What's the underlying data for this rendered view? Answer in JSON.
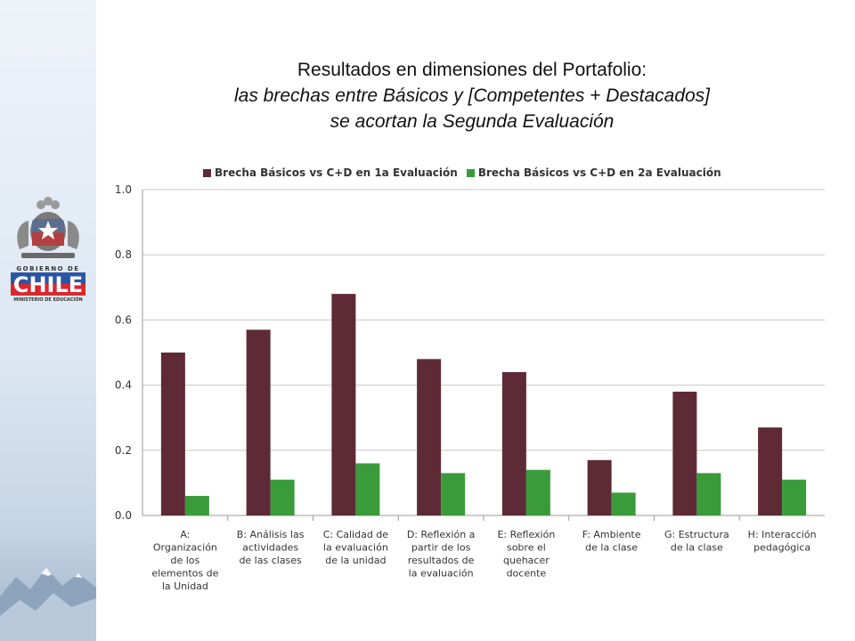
{
  "logo": {
    "line1": "GOBIERNO DE",
    "line2": "CHILE",
    "line3": "MINISTERIO DE EDUCACIÓN"
  },
  "title": {
    "line1": "Resultados en dimensiones del Portafolio:",
    "line2": "las brechas entre Básicos y [Competentes + Destacados]",
    "line3": "se acortan la Segunda Evaluación"
  },
  "chart_data": {
    "type": "bar",
    "categories": [
      [
        "A:",
        "Organización",
        "de los",
        "elementos de",
        "la Unidad"
      ],
      [
        "B: Análisis las",
        "actividades",
        "de las clases"
      ],
      [
        "C: Calidad de",
        "la evaluación",
        "de la unidad"
      ],
      [
        "D: Reflexión a",
        "partir de los",
        "resultados de",
        "la evaluación"
      ],
      [
        "E: Reflexión",
        "sobre el",
        "quehacer",
        "docente"
      ],
      [
        "F: Ambiente",
        "de la clase"
      ],
      [
        "G: Estructura",
        "de la clase"
      ],
      [
        "H: Interacción",
        "pedagógica"
      ]
    ],
    "series": [
      {
        "name": "Brecha Básicos vs C+D en 1a Evaluación",
        "color": "#5e2a36",
        "values": [
          0.5,
          0.57,
          0.68,
          0.48,
          0.44,
          0.17,
          0.38,
          0.27
        ]
      },
      {
        "name": "Brecha Básicos vs C+D en 2a Evaluación",
        "color": "#3a9b3a",
        "values": [
          0.06,
          0.11,
          0.16,
          0.13,
          0.14,
          0.07,
          0.13,
          0.11
        ]
      }
    ],
    "ylim": [
      0,
      1.0
    ],
    "yticks": [
      "0.0",
      "0.2",
      "0.4",
      "0.6",
      "0.8",
      "1.0"
    ],
    "grid": true,
    "legend": "top"
  }
}
